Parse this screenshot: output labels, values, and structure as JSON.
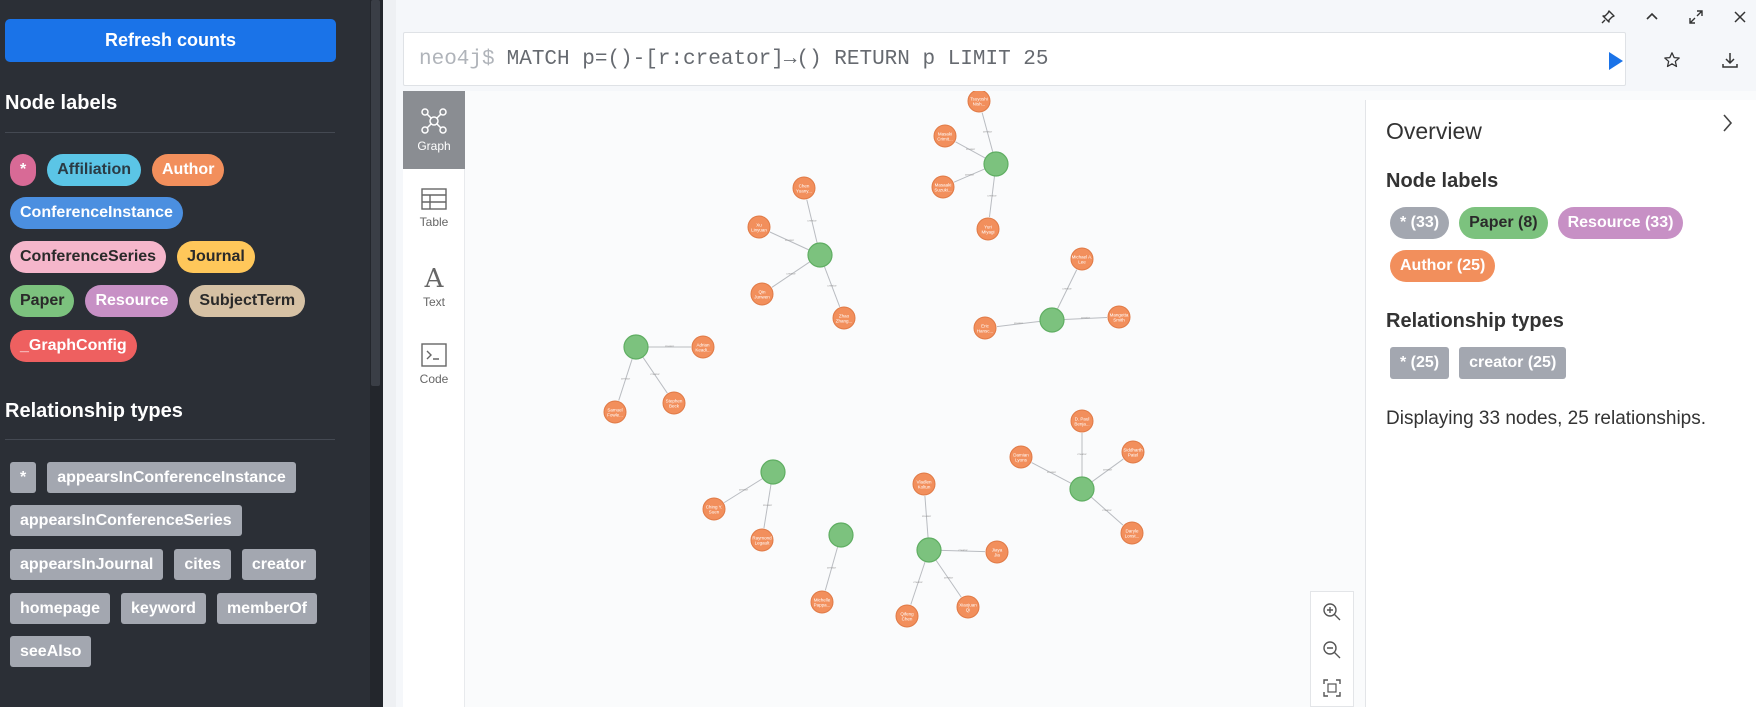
{
  "sidebar": {
    "refresh_label": "Refresh counts",
    "node_labels_title": "Node labels",
    "node_labels": [
      {
        "label": "*",
        "bg": "#d86a96",
        "fg": "#ffffff"
      },
      {
        "label": "Affiliation",
        "bg": "#5bc5e6",
        "fg": "#2a3b44"
      },
      {
        "label": "Author",
        "bg": "#f28f5c",
        "fg": "#ffffff"
      },
      {
        "label": "ConferenceInstance",
        "bg": "#4b8fe0",
        "fg": "#ffffff"
      },
      {
        "label": "ConferenceSeries",
        "bg": "#f5b6cb",
        "fg": "#2a2a2a"
      },
      {
        "label": "Journal",
        "bg": "#ffc75a",
        "fg": "#2a2a2a"
      },
      {
        "label": "Paper",
        "bg": "#7cc27e",
        "fg": "#2a2a2a"
      },
      {
        "label": "Resource",
        "bg": "#c790c5",
        "fg": "#ffffff"
      },
      {
        "label": "SubjectTerm",
        "bg": "#d6c1a4",
        "fg": "#2a2a2a"
      },
      {
        "label": "_GraphConfig",
        "bg": "#ee6060",
        "fg": "#ffffff"
      }
    ],
    "rel_types_title": "Relationship types",
    "rel_types": [
      "*",
      "appearsInConferenceInstance",
      "appearsInConferenceSeries",
      "appearsInJournal",
      "cites",
      "creator",
      "homepage",
      "keyword",
      "memberOf",
      "seeAlso"
    ]
  },
  "editor": {
    "prompt": "neo4j$",
    "query": "MATCH p=()-[r:creator]→() RETURN p LIMIT 25"
  },
  "view_tabs": [
    {
      "label": "Graph",
      "icon": "graph-icon",
      "active": true
    },
    {
      "label": "Table",
      "icon": "table-icon",
      "active": false
    },
    {
      "label": "Text",
      "icon": "text-icon",
      "active": false
    },
    {
      "label": "Code",
      "icon": "code-icon",
      "active": false
    }
  ],
  "overview": {
    "title": "Overview",
    "node_labels_title": "Node labels",
    "node_labels": [
      {
        "label": "* (33)",
        "bg": "#a3a7b0"
      },
      {
        "label": "Paper (8)",
        "bg": "#7cc27e",
        "fg": "#2a2a2a"
      },
      {
        "label": "Resource (33)",
        "bg": "#c790c5"
      },
      {
        "label": "Author (25)",
        "bg": "#f28f5c"
      }
    ],
    "rel_types_title": "Relationship types",
    "rel_types": [
      "* (25)",
      "creator (25)"
    ],
    "summary": "Displaying 33 nodes, 25 relationships."
  },
  "graph": {
    "paper_color": "#7cc27e",
    "author_color": "#f28f5c",
    "clusters": [
      {
        "authors": [
          "Tsuyoshi Nish...",
          "Masaki Crimit...",
          "Masaaki Suzuki...",
          "Yuri Miyagi"
        ]
      },
      {
        "authors": [
          "Chen Yuany...",
          "Xu Linyuan",
          "Qin Junwen",
          "Zhao Zhang..."
        ]
      },
      {
        "authors": [
          "Michael A. Lee",
          "Mangetta Smith",
          "Eric Hansc..."
        ]
      },
      {
        "authors": [
          "Adrian Keadi...",
          "Samuel Fowle...",
          "Stephen Beck"
        ]
      },
      {
        "authors": [
          "D. Paul Benja...",
          "Siddharth Patel",
          "Damian Lyons",
          "Daryle Lonst..."
        ]
      },
      {
        "authors": [
          "Ching Y. Suen",
          "Raymond Legault"
        ]
      },
      {
        "authors": [
          "Michelle Pappa..."
        ]
      },
      {
        "authors": [
          "Vladlen Koltun",
          "Jiaya Jia",
          "Xiaojuan Qi",
          "Qifeng Chen"
        ]
      }
    ]
  }
}
